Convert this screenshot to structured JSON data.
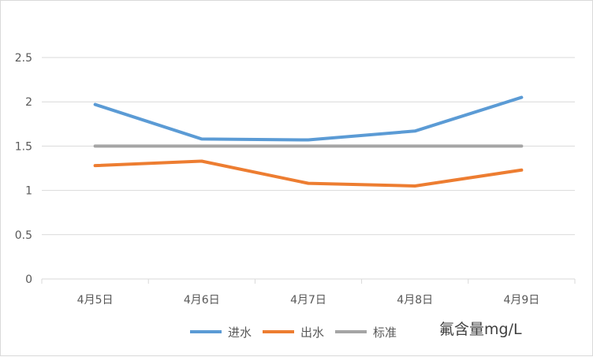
{
  "chart_data": {
    "type": "line",
    "categories": [
      "4月5日",
      "4月6日",
      "4月7日",
      "4月8日",
      "4月9日"
    ],
    "series": [
      {
        "name": "进水",
        "color": "#5b9bd5",
        "values": [
          1.97,
          1.58,
          1.57,
          1.67,
          2.05
        ]
      },
      {
        "name": "出水",
        "color": "#ed7d31",
        "values": [
          1.28,
          1.33,
          1.08,
          1.05,
          1.23
        ]
      },
      {
        "name": "标准",
        "color": "#a5a5a5",
        "values": [
          1.5,
          1.5,
          1.5,
          1.5,
          1.5
        ]
      }
    ],
    "y_ticks": [
      "0",
      "0.5",
      "1",
      "1.5",
      "2",
      "2.5"
    ],
    "ylim": [
      0,
      2.5
    ],
    "grid": true,
    "legend_position": "bottom",
    "unit_label": "氟含量mg/L"
  }
}
